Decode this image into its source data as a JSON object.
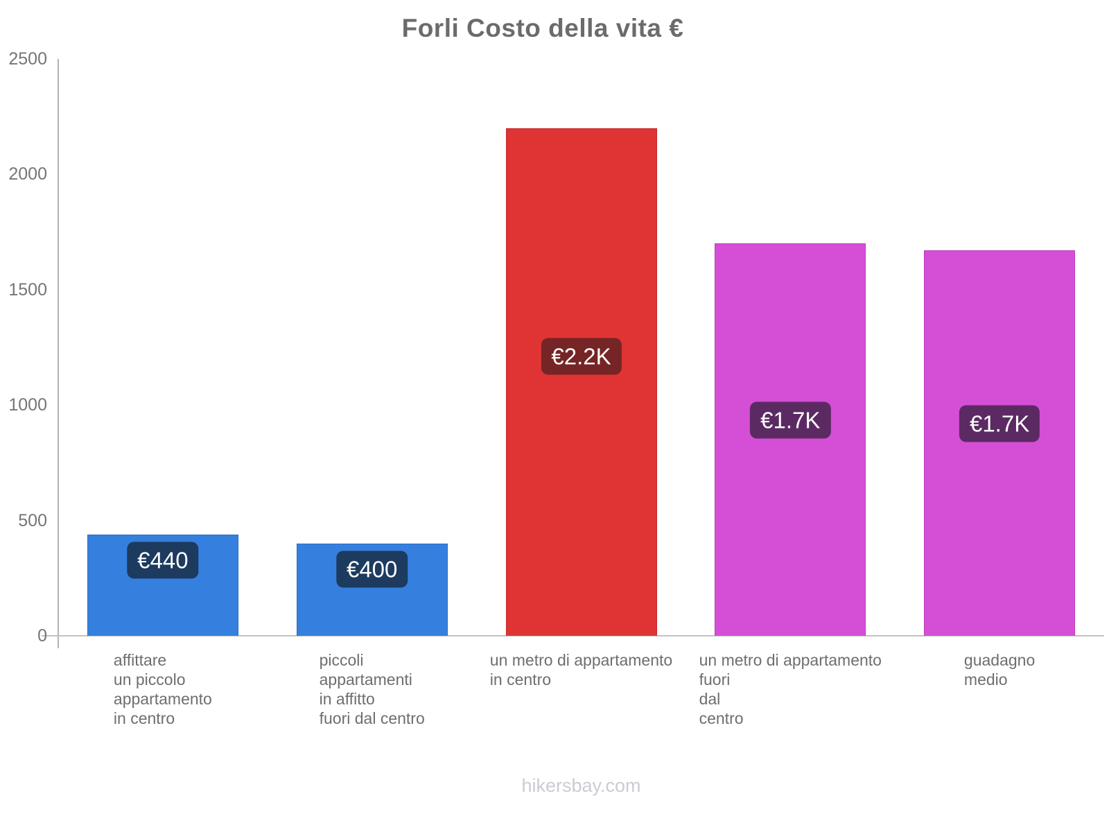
{
  "title": "Forli Costo della vita €",
  "footer": "hikersbay.com",
  "colors": {
    "title_text": "#6b6b6b",
    "axis_line": "#b3b3b3",
    "baseline": "#c2c2c2",
    "tick_text": "#757575",
    "category_text": "#6e6e6e",
    "footer_text": "#c9ccd3",
    "badge_text": "#ffffff"
  },
  "chart_data": {
    "type": "bar",
    "title": "Forli Costo della vita €",
    "xlabel": "",
    "ylabel": "",
    "ylim": [
      0,
      2500
    ],
    "yticks": [
      0,
      500,
      1000,
      1500,
      2000,
      2500
    ],
    "grid": false,
    "legend": false,
    "categories": [
      "affittare un piccolo appartamento in centro",
      "piccoli appartamenti in affitto fuori dal centro",
      "un metro di appartamento in centro",
      "un metro di appartamento fuori dal centro",
      "guadagno medio"
    ],
    "category_label_lines": [
      [
        "affittare",
        "un piccolo",
        "appartamento",
        "in centro"
      ],
      [
        "piccoli",
        "appartamenti",
        "in affitto",
        "fuori dal centro"
      ],
      [
        "un metro di appartamento",
        "in centro"
      ],
      [
        "un metro di appartamento",
        "fuori",
        "dal",
        "centro"
      ],
      [
        "guadagno",
        "medio"
      ]
    ],
    "values": [
      440,
      400,
      2200,
      1700,
      1670
    ],
    "value_labels": [
      "€440",
      "€400",
      "€2.2K",
      "€1.7K",
      "€1.7K"
    ],
    "bar_colors": [
      "#3580de",
      "#3580de",
      "#e03434",
      "#d44fd6",
      "#d44fd6"
    ],
    "bar_border_colors": [
      "#2a6cc2",
      "#2a6cc2",
      "#c22a2a",
      "#b83dbc",
      "#b83dbc"
    ],
    "badge_bg_colors": [
      "#1d3a5f",
      "#1d3a5f",
      "#752525",
      "#5c2a63",
      "#5c2a63"
    ],
    "currency": "€"
  }
}
